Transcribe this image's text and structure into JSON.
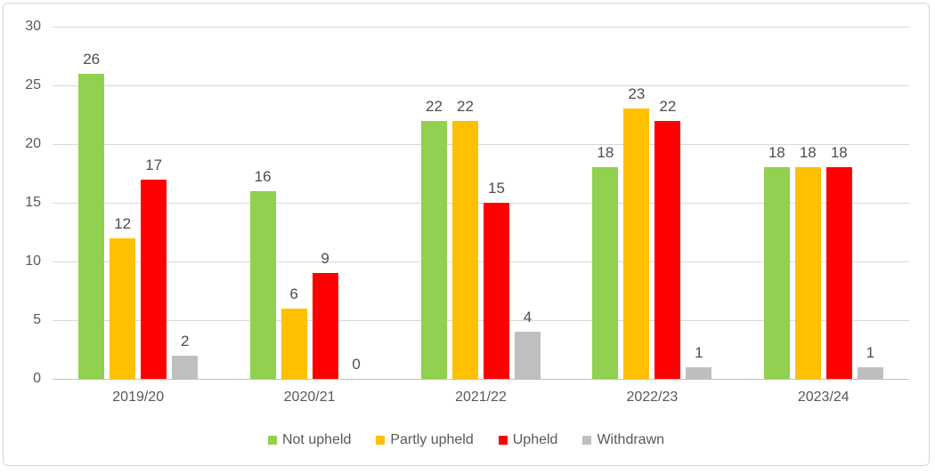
{
  "chart_data": {
    "type": "bar",
    "title": "",
    "xlabel": "",
    "ylabel": "",
    "categories": [
      "2019/20",
      "2020/21",
      "2021/22",
      "2022/23",
      "2023/24"
    ],
    "series": [
      {
        "name": "Not upheld",
        "color": "#92D050",
        "values": [
          26,
          16,
          22,
          18,
          18
        ]
      },
      {
        "name": "Partly upheld",
        "color": "#FFC000",
        "values": [
          12,
          6,
          22,
          23,
          18
        ]
      },
      {
        "name": "Upheld",
        "color": "#FF0000",
        "values": [
          17,
          9,
          15,
          22,
          18
        ]
      },
      {
        "name": "Withdrawn",
        "color": "#BFBFBF",
        "values": [
          2,
          0,
          4,
          1,
          1
        ]
      }
    ],
    "ylim": [
      0,
      30
    ],
    "yticks": [
      0,
      5,
      10,
      15,
      20,
      25,
      30
    ],
    "grid": true,
    "data_labels": true,
    "legend_position": "bottom"
  },
  "colors": {
    "gridline": "#D9D9D9",
    "axis_line": "#BFBFBF",
    "axis_text": "#595959",
    "data_label_text": "#4D4D4D",
    "frame_border": "#D6D6D6",
    "background": "#FFFFFF"
  }
}
